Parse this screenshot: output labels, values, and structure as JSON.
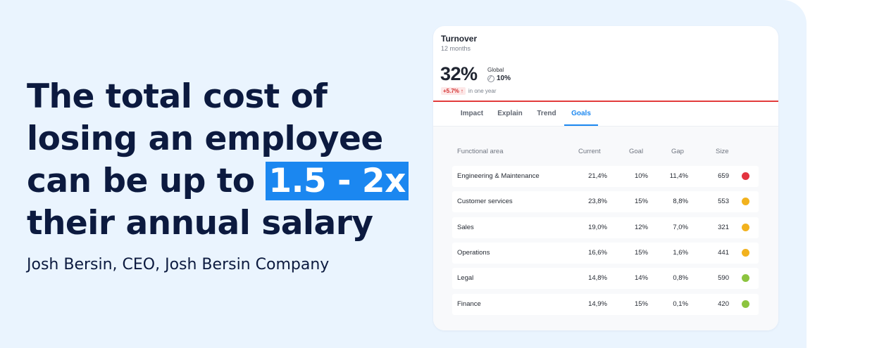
{
  "headline": {
    "lines": [
      "The total cost of",
      "losing an employee",
      "can be up to ",
      "their annual salary"
    ],
    "highlight": "1.5 - 2x"
  },
  "quote_author": "Josh Bersin, CEO, Josh Bersin Company",
  "card": {
    "title": "Turnover",
    "subtitle": "12 months",
    "value": "32%",
    "global_label": "Global",
    "global_value": "10%",
    "change_badge": "+5.7%",
    "change_text": "in one year",
    "accent_color": "#e23b3b",
    "tabs": [
      {
        "label": "Impact",
        "active": false
      },
      {
        "label": "Explain",
        "active": false
      },
      {
        "label": "Trend",
        "active": false
      },
      {
        "label": "Goals",
        "active": true
      }
    ],
    "table": {
      "headers": [
        "Functional area",
        "Current",
        "Goal",
        "Gap",
        "Size"
      ],
      "rows": [
        {
          "area": "Engineering & Maintenance",
          "current": "21,4%",
          "goal": "10%",
          "gap": "11,4%",
          "size": "659",
          "status": "red"
        },
        {
          "area": "Customer services",
          "current": "23,8%",
          "goal": "15%",
          "gap": "8,8%",
          "size": "553",
          "status": "amber"
        },
        {
          "area": "Sales",
          "current": "19,0%",
          "goal": "12%",
          "gap": "7,0%",
          "size": "321",
          "status": "amber"
        },
        {
          "area": "Operations",
          "current": "16,6%",
          "goal": "15%",
          "gap": "1,6%",
          "size": "441",
          "status": "amber"
        },
        {
          "area": "Legal",
          "current": "14,8%",
          "goal": "14%",
          "gap": "0,8%",
          "size": "590",
          "status": "green"
        },
        {
          "area": "Finance",
          "current": "14,9%",
          "goal": "15%",
          "gap": "0,1%",
          "size": "420",
          "status": "green"
        }
      ],
      "status_colors": {
        "red": "#e3343f",
        "amber": "#f2b21e",
        "green": "#8cc43f"
      }
    }
  }
}
